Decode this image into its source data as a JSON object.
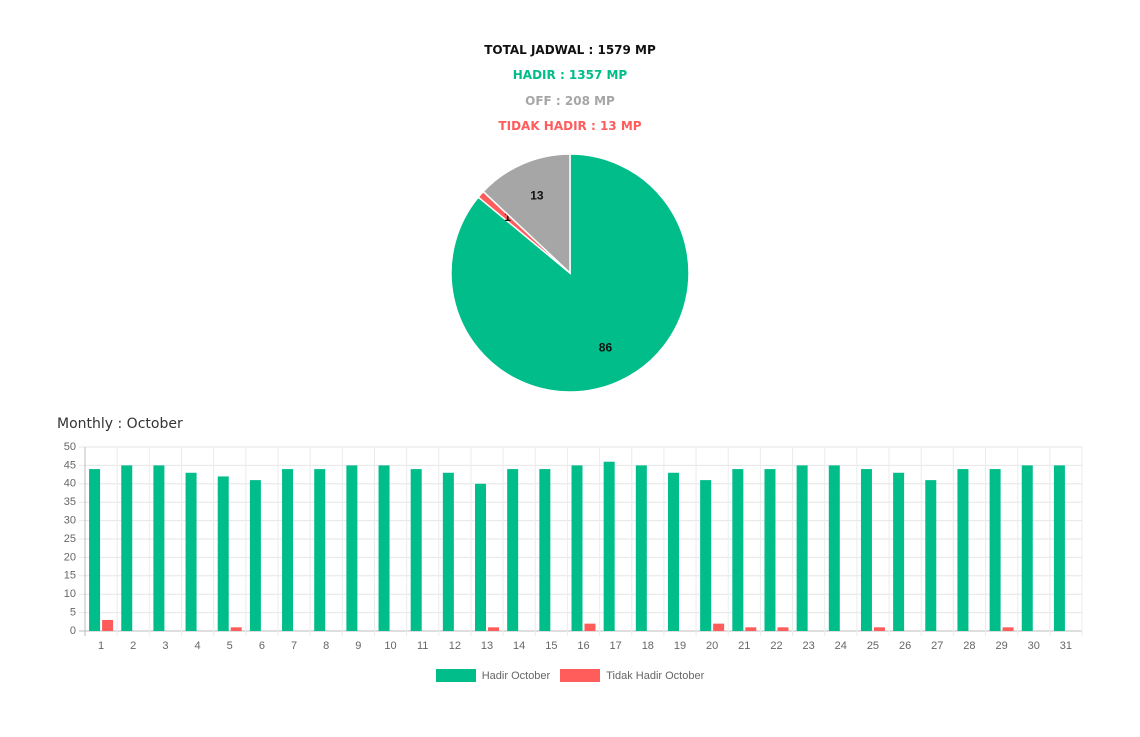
{
  "summary": {
    "total": "TOTAL JADWAL : 1579 MP",
    "hadir": "HADIR : 1357 MP",
    "off": "OFF : 208 MP",
    "tidak_hadir": "TIDAK HADIR : 13 MP"
  },
  "colors": {
    "hadir": "#00bd8a",
    "off": "#a6a6a6",
    "tidak_hadir": "#ff5c5c",
    "total": "#111111"
  },
  "section_title": "Monthly : October",
  "chart_data": [
    {
      "type": "pie",
      "slices": [
        {
          "key": "hadir",
          "value": 86,
          "label": "86"
        },
        {
          "key": "tidak_hadir",
          "value": 1,
          "label": "1"
        },
        {
          "key": "off",
          "value": 13,
          "label": "13"
        }
      ]
    },
    {
      "type": "bar",
      "categories": [
        "1",
        "2",
        "3",
        "4",
        "5",
        "6",
        "7",
        "8",
        "9",
        "10",
        "11",
        "12",
        "13",
        "14",
        "15",
        "16",
        "17",
        "18",
        "19",
        "20",
        "21",
        "22",
        "23",
        "24",
        "25",
        "26",
        "27",
        "28",
        "29",
        "30",
        "31"
      ],
      "series": [
        {
          "name": "Hadir October",
          "key": "hadir",
          "values": [
            44,
            45,
            45,
            43,
            42,
            41,
            44,
            44,
            45,
            45,
            44,
            43,
            40,
            44,
            44,
            45,
            46,
            45,
            43,
            41,
            44,
            44,
            45,
            45,
            44,
            43,
            41,
            44,
            44,
            45,
            45
          ]
        },
        {
          "name": "Tidak Hadir October",
          "key": "tidak_hadir",
          "values": [
            3,
            0,
            0,
            0,
            1,
            0,
            0,
            0,
            0,
            0,
            0,
            0,
            1,
            0,
            0,
            2,
            0,
            0,
            0,
            2,
            1,
            1,
            0,
            0,
            1,
            0,
            0,
            0,
            1,
            0,
            0
          ]
        }
      ],
      "ylim": [
        0,
        50
      ],
      "yticks": [
        0,
        5,
        10,
        15,
        20,
        25,
        30,
        35,
        40,
        45,
        50
      ],
      "grid": true,
      "legend": "bottom"
    }
  ]
}
